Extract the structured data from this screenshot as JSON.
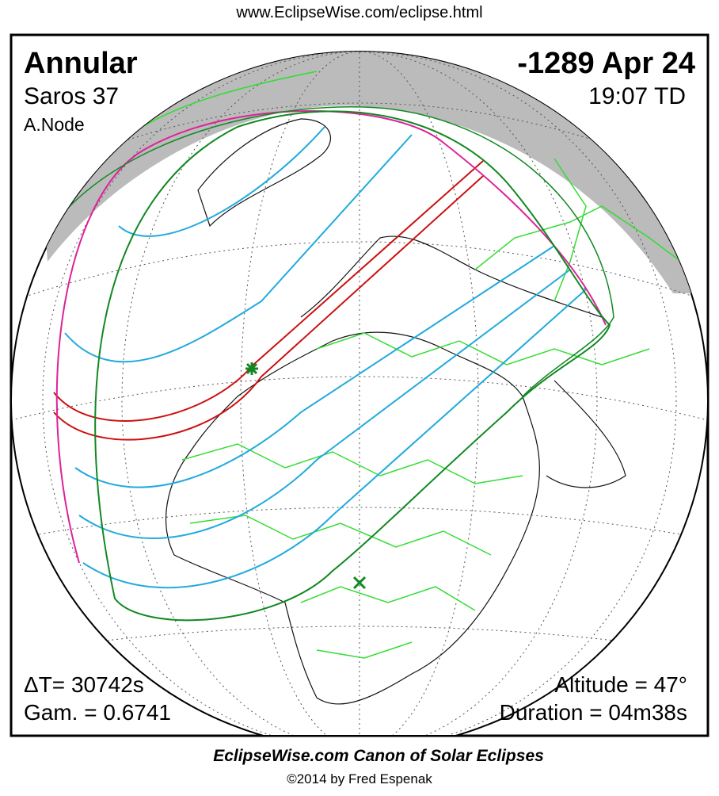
{
  "header": {
    "url": "www.EclipseWise.com/eclipse.html",
    "eclipse_type": "Annular",
    "date": "-1289 Apr 24",
    "saros": "Saros  37",
    "time": "19:07 TD",
    "node": "A.Node"
  },
  "stats": {
    "delta_t": "ΔT=  30742s",
    "gamma": "Gam. = 0.6741",
    "altitude": "Altitude = 47°",
    "duration": "Duration = 04m38s"
  },
  "footer": {
    "title": "EclipseWise.com Canon of Solar Eclipses",
    "credit": "©2014 by Fred Espenak"
  }
}
